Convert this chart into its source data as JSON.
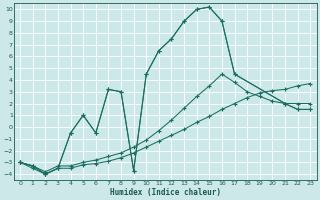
{
  "xlabel": "Humidex (Indice chaleur)",
  "xlim": [
    -0.5,
    23.5
  ],
  "ylim": [
    -4.5,
    10.5
  ],
  "xticks": [
    0,
    1,
    2,
    3,
    4,
    5,
    6,
    7,
    8,
    9,
    10,
    11,
    12,
    13,
    14,
    15,
    16,
    17,
    18,
    19,
    20,
    21,
    22,
    23
  ],
  "yticks": [
    -4,
    -3,
    -2,
    -1,
    0,
    1,
    2,
    3,
    4,
    5,
    6,
    7,
    8,
    9,
    10
  ],
  "bg_color": "#cce8e8",
  "grid_color": "#ffffff",
  "line_color": "#1a6e60",
  "line1_x": [
    0,
    1,
    2,
    3,
    4,
    5,
    6,
    7,
    8,
    9,
    10,
    11,
    12,
    13,
    14,
    15,
    16,
    17,
    18,
    19,
    20,
    21,
    22,
    23
  ],
  "line1_y": [
    -3,
    -3.5,
    -4,
    -3.5,
    -3.5,
    -3.2,
    -3.1,
    -2.9,
    -2.6,
    -2.2,
    -1.7,
    -1.2,
    -0.7,
    -0.2,
    0.4,
    0.9,
    1.5,
    2.0,
    2.5,
    2.9,
    3.1,
    3.2,
    3.5,
    3.7
  ],
  "line2_x": [
    0,
    1,
    2,
    3,
    4,
    5,
    6,
    7,
    8,
    9,
    10,
    11,
    12,
    13,
    14,
    15,
    16,
    17,
    18,
    19,
    20,
    21,
    22,
    23
  ],
  "line2_y": [
    -3,
    -3.3,
    -3.8,
    -3.3,
    -3.3,
    -3.0,
    -2.8,
    -2.5,
    -2.2,
    -1.7,
    -1.1,
    -0.3,
    0.6,
    1.6,
    2.6,
    3.5,
    4.5,
    3.8,
    3.0,
    2.6,
    2.2,
    2.0,
    2.0,
    2.0
  ],
  "line3_x": [
    0,
    1,
    2,
    3,
    4,
    5,
    6,
    7,
    8,
    9,
    10,
    11,
    12,
    13,
    14,
    15,
    16,
    17,
    21,
    22,
    23
  ],
  "line3_y": [
    -3,
    -3.3,
    -4,
    -3.5,
    -0.5,
    1.0,
    -0.5,
    3.2,
    3.0,
    -3.7,
    4.5,
    6.5,
    7.5,
    9.0,
    10.0,
    10.2,
    9.0,
    4.5,
    2.0,
    1.5,
    1.5
  ],
  "line4_x": [
    0,
    1,
    2,
    3,
    4,
    5,
    6,
    7,
    8,
    9,
    10,
    11,
    12,
    13,
    14,
    15,
    16,
    17,
    21,
    22,
    23
  ],
  "line4_y": [
    -3,
    -3.3,
    -4,
    -3.5,
    -0.5,
    1.0,
    -0.5,
    3.2,
    3.0,
    -3.7,
    4.5,
    6.5,
    7.5,
    9.0,
    10.0,
    10.2,
    9.0,
    4.5,
    2.0,
    1.5,
    1.5
  ]
}
